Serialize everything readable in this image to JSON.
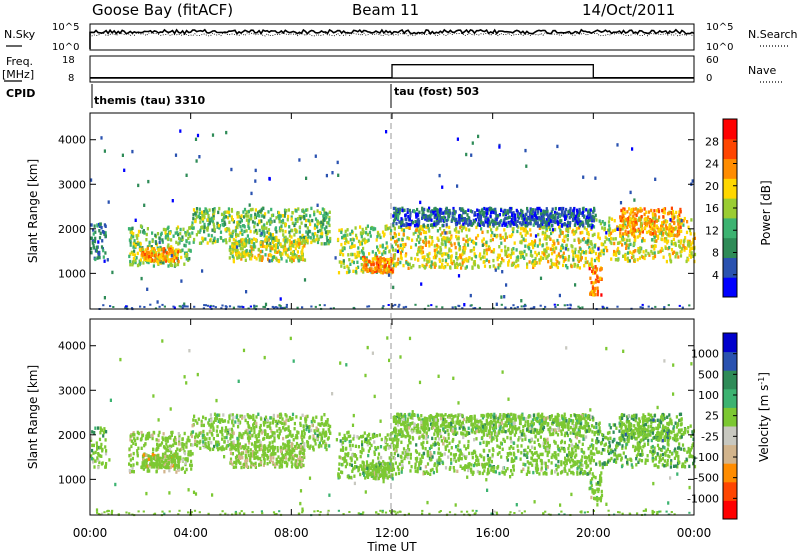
{
  "header": {
    "station": "Goose Bay (fitACF)",
    "beam": "Beam 11",
    "date": "14/Oct/2011"
  },
  "left_labels": {
    "nsky": "N.Sky",
    "freq": "Freq.",
    "freq_unit": "[MHz]",
    "cpid": "CPID"
  },
  "right_labels": {
    "nsearch": "N.Search",
    "nave": "Nave"
  },
  "noise_axis": {
    "left_ticks": [
      "10^5",
      "10^0"
    ],
    "right_ticks": [
      "10^5",
      "10^0"
    ]
  },
  "freq_axis": {
    "left_ticks": [
      "18",
      "8"
    ],
    "right_ticks": [
      "60",
      "0"
    ]
  },
  "cpid_labels": [
    {
      "text": "themis (tau) 3310",
      "start_hour": 0
    },
    {
      "text": "tau (fost) 503",
      "start_hour": 12
    }
  ],
  "colors": {
    "power_scale": [
      "#0000ff",
      "#2a52b0",
      "#2e8b57",
      "#3cb371",
      "#9acd32",
      "#ffd700",
      "#ff8c00",
      "#ff4500",
      "#ff0000"
    ],
    "velocity_scale": [
      "#ff0000",
      "#ff4500",
      "#ff8c00",
      "#d2b48c",
      "#c8c8c0",
      "#7cc832",
      "#3cb371",
      "#2e8b57",
      "#2a52b0",
      "#0000cc"
    ]
  },
  "chart_data": {
    "type": "heatmap",
    "xlabel": "Time UT",
    "x_ticks": [
      "00:00",
      "04:00",
      "08:00",
      "12:00",
      "16:00",
      "20:00",
      "00:00"
    ],
    "xlim": [
      0,
      24
    ],
    "panels": [
      {
        "name": "power",
        "ylabel": "Slant Range [km]",
        "y_ticks": [
          "1000",
          "2000",
          "3000",
          "4000"
        ],
        "ylim": [
          200,
          4600
        ],
        "colorbar_label": "Power [dB]",
        "colorbar_ticks": [
          "4",
          "8",
          "12",
          "16",
          "20",
          "24",
          "28"
        ],
        "colorbar_range": [
          0,
          32
        ]
      },
      {
        "name": "velocity",
        "ylabel": "Slant Range [km]",
        "y_ticks": [
          "1000",
          "2000",
          "3000",
          "4000"
        ],
        "ylim": [
          200,
          4600
        ],
        "colorbar_label": "Velocity [m s",
        "colorbar_label_sup": "-1",
        "colorbar_label_end": "]",
        "colorbar_ticks": [
          "-1000",
          "-500",
          "-100",
          "-25",
          "25",
          "100",
          "500",
          "1000"
        ]
      }
    ],
    "echo_bands": [
      {
        "t0": 0.0,
        "t1": 0.6,
        "r0": 1300,
        "r1": 2200,
        "power": 8,
        "vel": 50
      },
      {
        "t0": 1.5,
        "t1": 4.0,
        "r0": 1200,
        "r1": 2100,
        "power": 14,
        "vel": -150
      },
      {
        "t0": 2.0,
        "t1": 3.5,
        "r0": 1300,
        "r1": 1600,
        "power": 22,
        "vel": -400
      },
      {
        "t0": 4.0,
        "t1": 9.5,
        "r0": 1700,
        "r1": 2500,
        "power": 14,
        "vel": -20
      },
      {
        "t0": 5.5,
        "t1": 8.5,
        "r0": 1300,
        "r1": 1800,
        "power": 18,
        "vel": -300
      },
      {
        "t0": 9.8,
        "t1": 12.0,
        "r0": 1050,
        "r1": 2100,
        "power": 16,
        "vel": 10
      },
      {
        "t0": 10.8,
        "t1": 12.0,
        "r0": 1050,
        "r1": 1400,
        "power": 24,
        "vel": -30
      },
      {
        "t0": 12.0,
        "t1": 20.0,
        "r0": 1150,
        "r1": 2100,
        "power": 18,
        "vel": 10
      },
      {
        "t0": 12.0,
        "t1": 20.0,
        "r0": 2100,
        "r1": 2500,
        "power": 6,
        "vel": 20
      },
      {
        "t0": 19.8,
        "t1": 20.3,
        "r0": 550,
        "r1": 1200,
        "power": 24,
        "vel": -20
      },
      {
        "t0": 20.0,
        "t1": 24.0,
        "r0": 1300,
        "r1": 2300,
        "power": 18,
        "vel": 200
      },
      {
        "t0": 21.0,
        "t1": 23.5,
        "r0": 1900,
        "r1": 2500,
        "power": 22,
        "vel": 400
      }
    ],
    "near_range_band": {
      "r0": 220,
      "r1": 320,
      "power": 6
    },
    "noise_sky_level": 0.7,
    "noise_search_level": 0.6,
    "freq_level": 0.15,
    "nave_segments": [
      {
        "t0": 0,
        "t1": 12,
        "value": 10
      },
      {
        "t0": 12,
        "t1": 20,
        "value": 40
      },
      {
        "t0": 20,
        "t1": 24,
        "value": 10
      }
    ]
  }
}
